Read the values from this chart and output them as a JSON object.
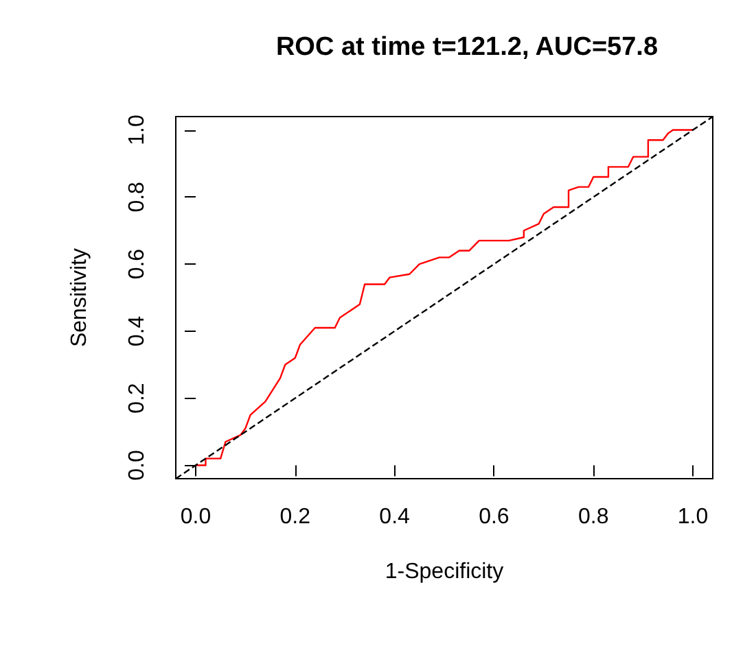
{
  "chart_data": {
    "type": "line",
    "title": "ROC at time t=121.2, AUC=57.8",
    "xlabel": "1-Specificity",
    "ylabel": "Sensitivity",
    "xlim": [
      -0.04,
      1.04
    ],
    "ylim": [
      -0.04,
      1.04
    ],
    "xticks": [
      {
        "value": 0,
        "label": "0.0"
      },
      {
        "value": 0.2,
        "label": "0.2"
      },
      {
        "value": 0.4,
        "label": "0.4"
      },
      {
        "value": 0.6,
        "label": "0.6"
      },
      {
        "value": 0.8,
        "label": "0.8"
      },
      {
        "value": 1,
        "label": "1.0"
      }
    ],
    "yticks": [
      {
        "value": 0,
        "label": "0.0"
      },
      {
        "value": 0.2,
        "label": "0.2"
      },
      {
        "value": 0.4,
        "label": "0.4"
      },
      {
        "value": 0.6,
        "label": "0.6"
      },
      {
        "value": 0.8,
        "label": "0.8"
      },
      {
        "value": 1,
        "label": "1.0"
      }
    ],
    "grid": false,
    "marker": "none",
    "series": [
      {
        "color": "#ff0000",
        "line_style": "solid",
        "x": [
          0,
          0.02,
          0.02,
          0.05,
          0.06,
          0.09,
          0.1,
          0.11,
          0.14,
          0.17,
          0.18,
          0.2,
          0.21,
          0.24,
          0.28,
          0.29,
          0.33,
          0.34,
          0.38,
          0.39,
          0.43,
          0.45,
          0.49,
          0.51,
          0.53,
          0.55,
          0.57,
          0.63,
          0.66,
          0.66,
          0.69,
          0.7,
          0.72,
          0.75,
          0.75,
          0.77,
          0.79,
          0.8,
          0.83,
          0.83,
          0.87,
          0.88,
          0.91,
          0.91,
          0.94,
          0.95,
          0.96,
          1
        ],
        "values": [
          0,
          0,
          0.02,
          0.02,
          0.07,
          0.09,
          0.11,
          0.15,
          0.19,
          0.26,
          0.3,
          0.32,
          0.36,
          0.41,
          0.41,
          0.44,
          0.48,
          0.54,
          0.54,
          0.56,
          0.57,
          0.6,
          0.62,
          0.62,
          0.64,
          0.64,
          0.67,
          0.67,
          0.68,
          0.7,
          0.72,
          0.75,
          0.77,
          0.77,
          0.82,
          0.83,
          0.83,
          0.86,
          0.86,
          0.89,
          0.89,
          0.92,
          0.92,
          0.97,
          0.97,
          0.99,
          1,
          1
        ]
      },
      {
        "color": "#000000",
        "line_style": "dashed",
        "x": [
          -0.04,
          1.04
        ],
        "values": [
          -0.04,
          1.04
        ]
      }
    ]
  }
}
